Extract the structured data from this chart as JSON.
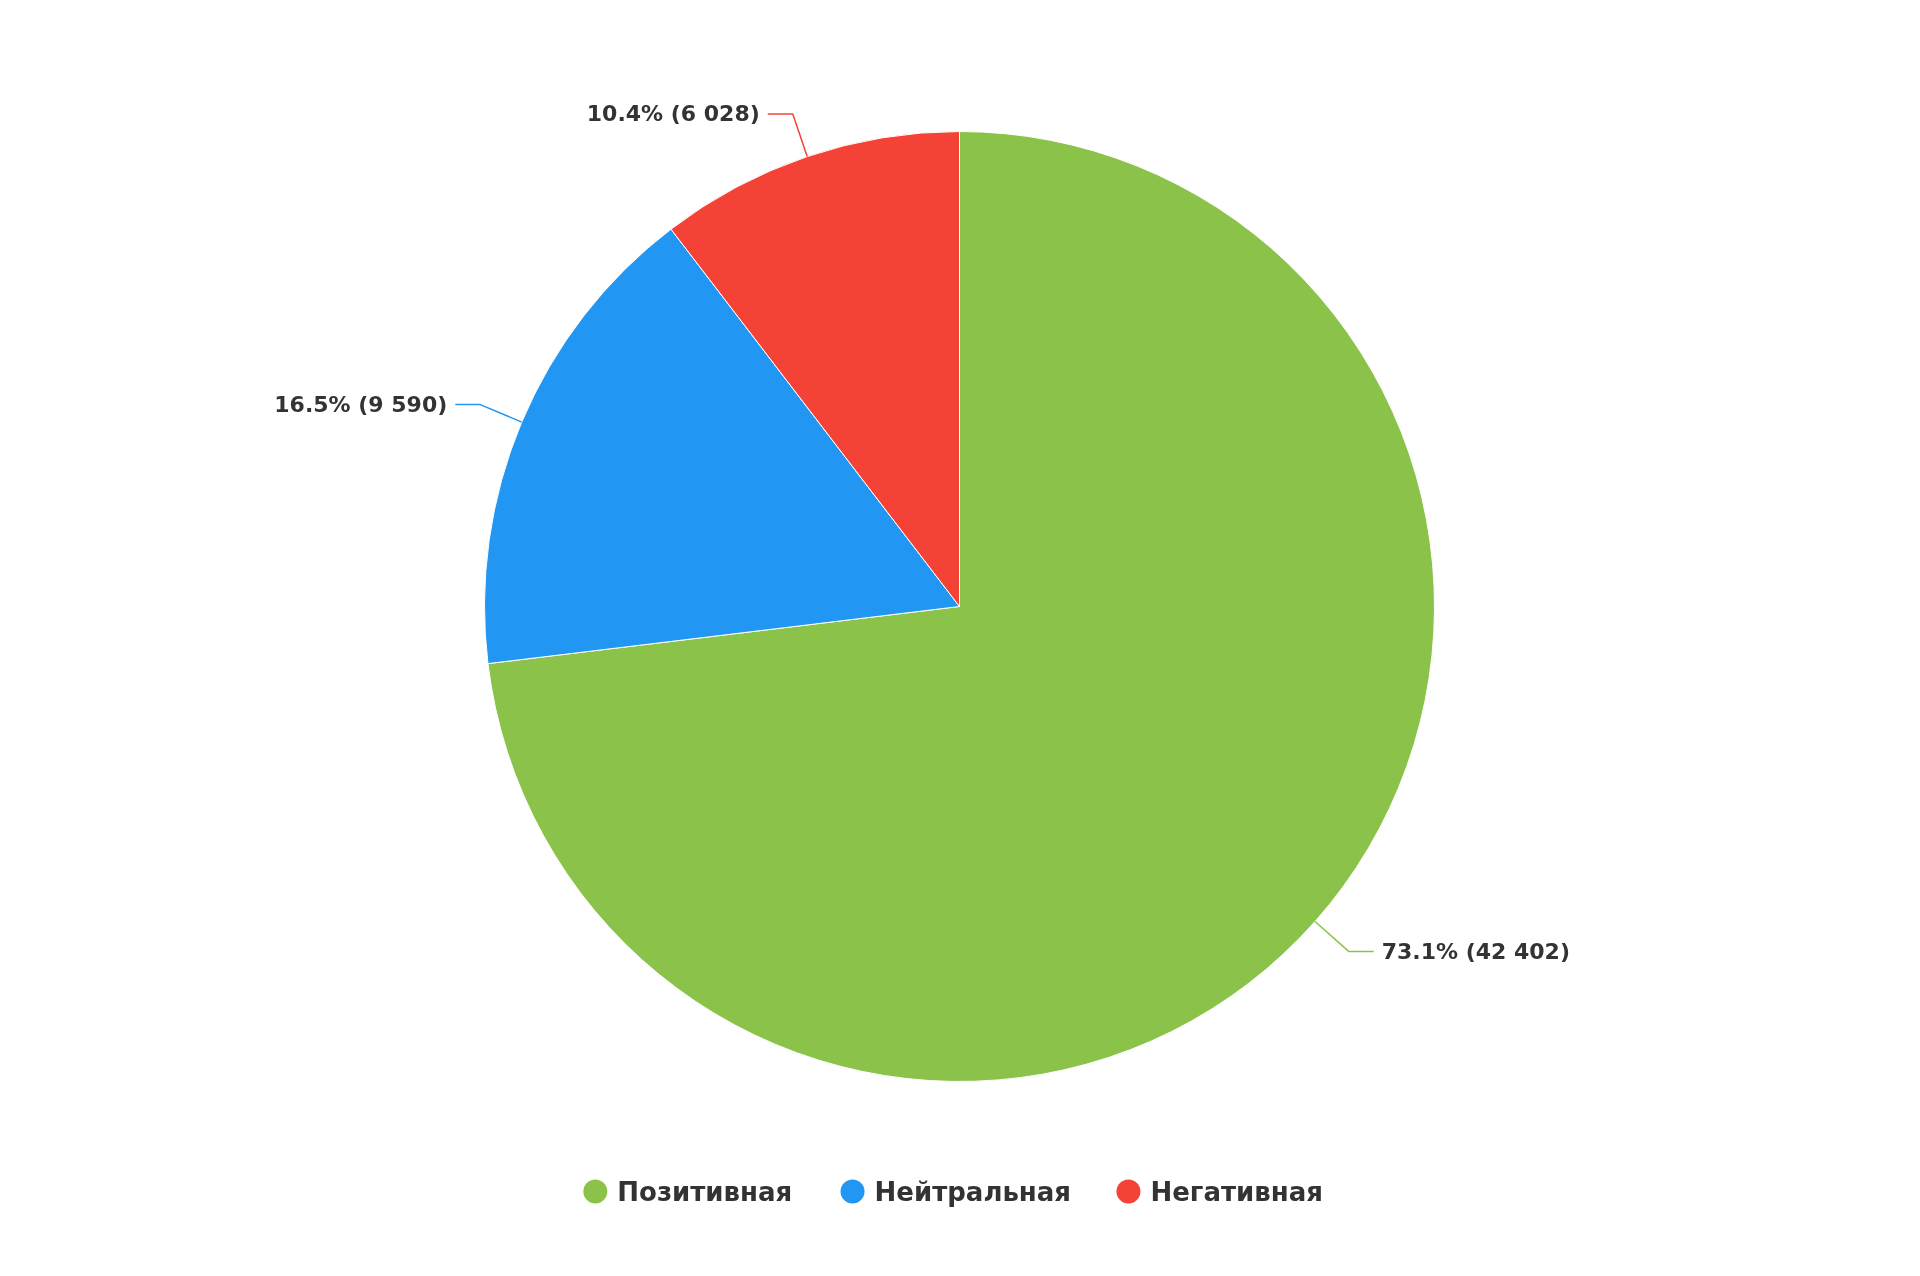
{
  "chart_data": {
    "type": "pie",
    "categories": [
      "Позитивная",
      "Нейтральная",
      "Негативная"
    ],
    "values": [
      42402,
      9590,
      6028
    ],
    "colors": [
      "#8bc34a",
      "#2196f3",
      "#f44336"
    ],
    "value_labels": [
      "73.1% (42 402)",
      "16.5% (9 590)",
      "10.4% (6 028)"
    ],
    "legend": "bottom"
  }
}
